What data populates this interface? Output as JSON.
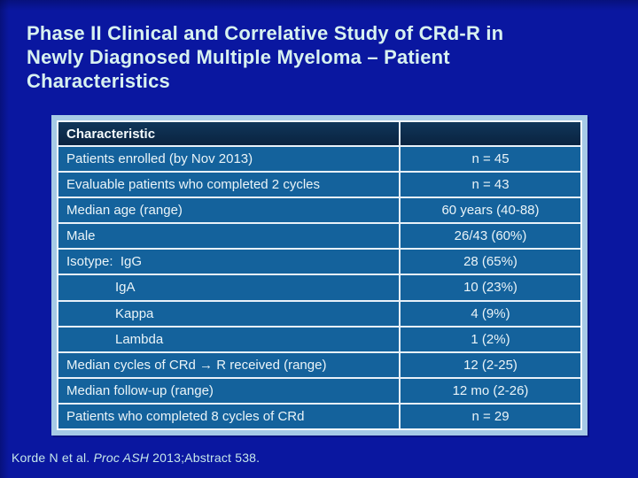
{
  "slide": {
    "title": {
      "lines": [
        "Phase II Clinical and Correlative Study of CRd-R in",
        "Newly Diagnosed Multiple Myeloma – Patient",
        "Characteristics"
      ]
    },
    "table": {
      "header": {
        "label": "Characteristic",
        "value": ""
      },
      "rows": [
        {
          "label": "Patients enrolled (by Nov 2013)",
          "value": "n = 45"
        },
        {
          "label": "Evaluable patients who completed 2 cycles",
          "value": "n = 43"
        },
        {
          "label": "Median age (range)",
          "value": "60 years (40-88)"
        },
        {
          "label": "Male",
          "value": "26/43 (60%)"
        },
        {
          "label": "Isotype:  IgG",
          "value": "28 (65%)"
        },
        {
          "label": "IgA",
          "value": "10 (23%)"
        },
        {
          "label": "Kappa",
          "value": "4 (9%)"
        },
        {
          "label": "Lambda",
          "value": "1 (2%)"
        },
        {
          "label": "Median cycles of CRd → R received (range)",
          "value": "12 (2-25)"
        },
        {
          "label": "Median follow-up (range)",
          "value": "12 mo (2-26)"
        },
        {
          "label": "Patients who completed 8 cycles of CRd",
          "value": "n = 29"
        }
      ]
    },
    "footer": {
      "citation_prefix": "Korde N et al. ",
      "citation_journal": "Proc ASH",
      "citation_suffix": " 2013;Abstract 538."
    },
    "colors": {
      "background": "#0A17A0",
      "title_text": "#D8F2F0",
      "table_frame": "#A6CAE6",
      "table_grid": "#E8F1F9",
      "header_bg": "#0C2B47",
      "row_bg": "#14629C",
      "cell_text": "#EAF4F8",
      "footer_text": "#C6E7EA"
    }
  }
}
